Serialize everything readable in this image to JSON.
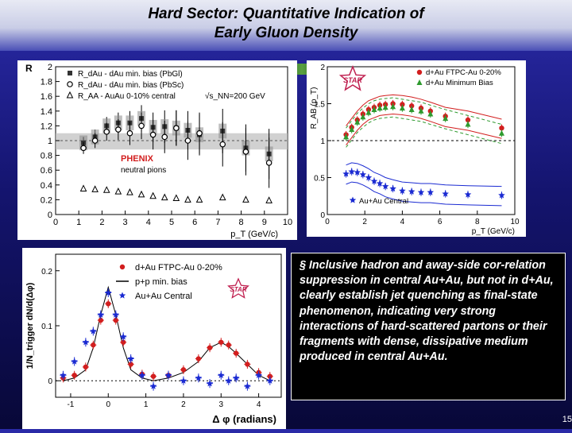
{
  "slide": {
    "title_line1": "Hard Sector:  Quantitative Indication of",
    "title_line2": "Early Gluon Density",
    "body_text": "§ Inclusive hadron and away-side cor-relation suppression in central Au+Au, but not in d+Au, clearly establish jet quenching as final-state phenomenon, indicating very strong interactions of hard-scattered partons or their fragments with dense, dissipative medium produced in central Au+Au.",
    "page_number": "15",
    "colors": {
      "background": "#1a1a8a",
      "red": "#d21e1e",
      "green": "#2e9a2e",
      "blue": "#1a2ad2"
    }
  },
  "chart_data": [
    {
      "type": "scatter",
      "ylabel": "R",
      "xlabel": "p_T (GeV/c)",
      "xlim": [
        0,
        10
      ],
      "ylim": [
        0,
        2
      ],
      "x_ticks": [
        "0",
        "1",
        "2",
        "3",
        "4",
        "5",
        "6",
        "7",
        "8",
        "9",
        "10"
      ],
      "y_ticks": [
        "0",
        "0.2",
        "0.4",
        "0.6",
        "0.8",
        "1",
        "1.2",
        "1.4",
        "1.6",
        "1.8",
        "2"
      ],
      "legend": [
        "R_dAu - dAu min. bias (PbGl)",
        "R_dAu - dAu min. bias (PbSc)",
        "R_AA - AuAu 0-10% central"
      ],
      "energy_label": "√s_NN=200 GeV",
      "annotation_1": "PHENIX",
      "annotation_2": "neutral pions",
      "band": [
        0.88,
        1.1
      ],
      "series": [
        {
          "name": "R_dAu - dAu min. bias (PbGl)",
          "x": [
            1.2,
            1.7,
            2.2,
            2.7,
            3.2,
            3.7,
            4.2,
            4.7,
            5.2,
            5.7,
            6.2,
            7.2,
            8.2,
            9.2
          ],
          "y": [
            0.97,
            1.05,
            1.2,
            1.24,
            1.24,
            1.3,
            1.18,
            1.19,
            1.17,
            1.14,
            1.08,
            1.13,
            0.9,
            0.82
          ]
        },
        {
          "name": "R_dAu - dAu min. bias (PbSc)",
          "x": [
            1.2,
            1.7,
            2.2,
            2.7,
            3.2,
            3.7,
            4.2,
            4.7,
            5.2,
            5.7,
            6.2,
            7.2,
            8.2,
            9.2
          ],
          "y": [
            0.9,
            1.0,
            1.12,
            1.15,
            1.1,
            1.2,
            1.08,
            1.05,
            1.17,
            1.0,
            1.1,
            0.95,
            0.85,
            0.7
          ]
        },
        {
          "name": "R_AA - AuAu 0-10% central",
          "x": [
            1.2,
            1.7,
            2.2,
            2.7,
            3.2,
            3.7,
            4.2,
            4.7,
            5.2,
            5.7,
            6.2,
            7.2,
            8.2,
            9.2
          ],
          "y": [
            0.35,
            0.34,
            0.33,
            0.31,
            0.3,
            0.27,
            0.25,
            0.23,
            0.22,
            0.2,
            0.2,
            0.23,
            0.2,
            0.19
          ]
        }
      ]
    },
    {
      "type": "scatter",
      "ylabel": "R_AB (p_T)",
      "xlabel": "p_T (GeV/c)",
      "xlim": [
        0,
        10
      ],
      "ylim": [
        0,
        2
      ],
      "x_ticks": [
        "0",
        "2",
        "4",
        "6",
        "8",
        "10"
      ],
      "y_ticks": [
        "0",
        "0.5",
        "1",
        "1.5",
        "2"
      ],
      "logo": "STAR",
      "series": [
        {
          "name": "d+Au FTPC-Au 0-20%",
          "color": "#d21e1e",
          "x": [
            1.0,
            1.3,
            1.6,
            1.9,
            2.2,
            2.5,
            2.8,
            3.1,
            3.5,
            4.0,
            4.5,
            5.0,
            5.5,
            6.3,
            7.5,
            9.3
          ],
          "y": [
            1.08,
            1.18,
            1.28,
            1.36,
            1.42,
            1.45,
            1.48,
            1.49,
            1.5,
            1.49,
            1.47,
            1.44,
            1.4,
            1.33,
            1.28,
            1.17
          ]
        },
        {
          "name": "d+Au Minimum Bias",
          "color": "#2e9a2e",
          "x": [
            1.0,
            1.3,
            1.6,
            1.9,
            2.2,
            2.5,
            2.8,
            3.1,
            3.5,
            4.0,
            4.5,
            5.0,
            5.5,
            6.3,
            7.5,
            9.3
          ],
          "y": [
            1.05,
            1.15,
            1.25,
            1.32,
            1.38,
            1.42,
            1.44,
            1.45,
            1.46,
            1.44,
            1.42,
            1.4,
            1.36,
            1.3,
            1.22,
            1.1
          ]
        },
        {
          "name": "Au+Au Central",
          "color": "#1a2ad2",
          "x": [
            1.0,
            1.3,
            1.6,
            1.9,
            2.2,
            2.5,
            2.8,
            3.1,
            3.5,
            4.0,
            4.5,
            5.0,
            5.5,
            6.3,
            7.5,
            9.3
          ],
          "y": [
            0.55,
            0.58,
            0.57,
            0.54,
            0.5,
            0.45,
            0.42,
            0.38,
            0.35,
            0.32,
            0.31,
            0.3,
            0.3,
            0.28,
            0.27,
            0.26
          ]
        }
      ]
    },
    {
      "type": "scatter",
      "ylabel": "1/N_trigger dN/d(Δφ)",
      "xlabel": "Δ φ (radians)",
      "xlim": [
        -1.4,
        4.6
      ],
      "ylim": [
        -0.03,
        0.23
      ],
      "x_ticks": [
        "-1",
        "0",
        "1",
        "2",
        "3",
        "4"
      ],
      "y_ticks": [
        "0",
        "0.1",
        "0.2"
      ],
      "logo": "STAR",
      "series": [
        {
          "name": "d+Au FTPC-Au 0-20%",
          "color": "#d21e1e",
          "x": [
            -1.2,
            -0.9,
            -0.6,
            -0.4,
            -0.2,
            0.0,
            0.2,
            0.4,
            0.6,
            0.9,
            1.2,
            1.6,
            2.0,
            2.4,
            2.7,
            3.0,
            3.2,
            3.4,
            3.7,
            4.0,
            4.3
          ],
          "y": [
            0.005,
            0.01,
            0.025,
            0.065,
            0.11,
            0.14,
            0.11,
            0.07,
            0.03,
            0.012,
            0.008,
            0.01,
            0.02,
            0.04,
            0.06,
            0.07,
            0.065,
            0.05,
            0.03,
            0.015,
            0.008
          ]
        },
        {
          "name": "p+p min. bias",
          "color": "#000000",
          "x": [
            -1.2,
            -0.9,
            -0.6,
            -0.4,
            -0.2,
            0.0,
            0.2,
            0.4,
            0.6,
            0.9,
            1.2,
            1.6,
            2.0,
            2.4,
            2.7,
            3.0,
            3.2,
            3.4,
            3.7,
            4.0,
            4.3
          ],
          "y": [
            0.0,
            0.005,
            0.02,
            0.06,
            0.12,
            0.17,
            0.12,
            0.06,
            0.02,
            0.005,
            0.0,
            0.005,
            0.015,
            0.035,
            0.06,
            0.07,
            0.062,
            0.05,
            0.03,
            0.01,
            0.0
          ]
        },
        {
          "name": "Au+Au Central",
          "color": "#1a2ad2",
          "x": [
            -1.2,
            -0.9,
            -0.6,
            -0.4,
            -0.2,
            0.0,
            0.2,
            0.4,
            0.6,
            0.9,
            1.2,
            1.6,
            2.0,
            2.4,
            2.7,
            3.0,
            3.2,
            3.4,
            3.7,
            4.0,
            4.3
          ],
          "y": [
            0.01,
            0.035,
            0.07,
            0.09,
            0.12,
            0.16,
            0.12,
            0.08,
            0.04,
            0.01,
            -0.01,
            0.01,
            0.0,
            0.005,
            -0.005,
            0.01,
            0.0,
            0.005,
            -0.01,
            0.01,
            0.0
          ]
        }
      ]
    }
  ]
}
